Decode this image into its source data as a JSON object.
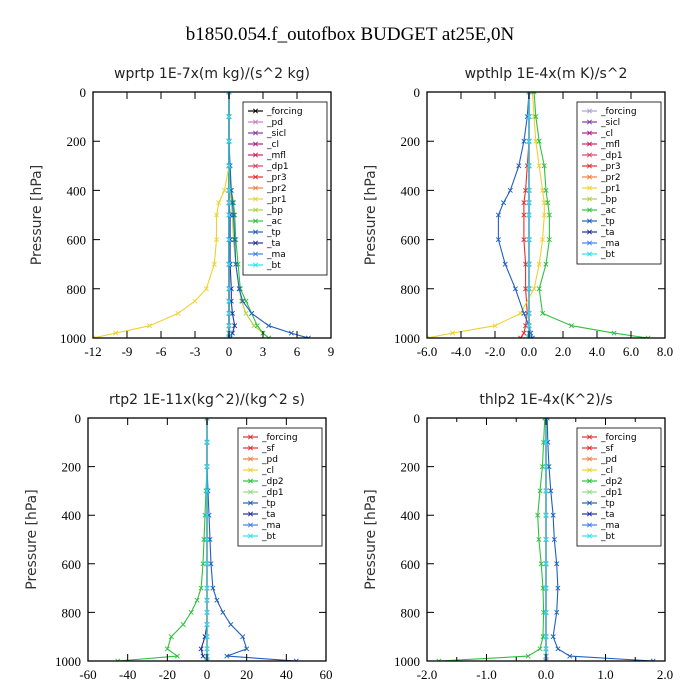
{
  "title": "b1850.054.f_outofbox  BUDGET at25E,0N",
  "chart_data": [
    {
      "id": "wprtp",
      "type": "line",
      "title": "wprtp  1E-7x(m kg)/(s^2 kg)",
      "ylabel": "Pressure [hPa]",
      "xlim": [
        -12,
        9
      ],
      "ylim": [
        1000,
        0
      ],
      "xticks": [
        -12,
        -9,
        -6,
        -3,
        0,
        3,
        6,
        9
      ],
      "xtick_labels": [
        "-12",
        "-9",
        "-6",
        "-3",
        "0",
        "3",
        "6",
        "9"
      ],
      "yticks": [
        0,
        200,
        400,
        600,
        800,
        1000
      ],
      "legend_position": "top-right",
      "y": [
        0,
        100,
        200,
        300,
        400,
        450,
        500,
        600,
        700,
        800,
        850,
        900,
        950,
        980,
        1000
      ],
      "series": [
        {
          "name": "_forcing",
          "color": "#000000",
          "values": [
            0,
            0,
            0,
            0,
            0,
            0,
            0,
            0,
            0,
            0,
            0,
            0,
            0,
            0,
            0
          ]
        },
        {
          "name": "_pd",
          "color": "#c080c0",
          "values": [
            0,
            0,
            0,
            0,
            0,
            0,
            0,
            0,
            0,
            0,
            0,
            0,
            0,
            0,
            0
          ]
        },
        {
          "name": "_sicl",
          "color": "#8040a0",
          "values": [
            0,
            0,
            0,
            0,
            0,
            0,
            0,
            0,
            0,
            0,
            0,
            0,
            0,
            0,
            0
          ]
        },
        {
          "name": "_cl",
          "color": "#b0208a",
          "values": [
            0,
            0,
            0,
            0,
            0,
            0,
            0,
            0,
            0,
            0,
            0,
            0,
            0,
            0,
            0
          ]
        },
        {
          "name": "_mfl",
          "color": "#d0205a",
          "values": [
            0,
            0,
            0,
            0,
            0,
            0,
            0,
            0,
            0,
            0,
            0,
            0,
            0,
            0,
            0
          ]
        },
        {
          "name": "_dp1",
          "color": "#e04060",
          "values": [
            0,
            0,
            0,
            0,
            0,
            0,
            0,
            0,
            0,
            0,
            0,
            0,
            0,
            0,
            0
          ]
        },
        {
          "name": "_pr3",
          "color": "#e03030",
          "values": [
            0,
            0,
            0,
            0,
            0,
            0,
            0,
            0,
            0,
            0,
            0,
            0,
            0,
            0,
            0
          ]
        },
        {
          "name": "_pr2",
          "color": "#f08040",
          "values": [
            0,
            0,
            0,
            0,
            0,
            0,
            0,
            0,
            0,
            0,
            0,
            0,
            0,
            0,
            0
          ]
        },
        {
          "name": "_pr1",
          "color": "#f0d030",
          "values": [
            0,
            0,
            0,
            0,
            -0.4,
            -0.9,
            -1.1,
            -1.1,
            -1.3,
            -2,
            -3,
            -4.5,
            -7,
            -10,
            -12
          ]
        },
        {
          "name": "_bp",
          "color": "#b0d040",
          "values": [
            0,
            0,
            0,
            0,
            0.1,
            0.2,
            0.3,
            0.4,
            0.6,
            0.9,
            1.1,
            1.5,
            2.2,
            3.0,
            3.5
          ]
        },
        {
          "name": "_ac",
          "color": "#30c040",
          "values": [
            0,
            0,
            0,
            0,
            0.2,
            0.4,
            0.5,
            0.6,
            0.8,
            1.0,
            1.5,
            2.0,
            2.5,
            3.0,
            3.5
          ]
        },
        {
          "name": "_tp",
          "color": "#2060c0",
          "values": [
            0,
            0,
            0,
            0.1,
            0.2,
            0.3,
            0.4,
            0.5,
            0.6,
            0.9,
            1.2,
            2.0,
            3.5,
            5.5,
            7
          ]
        },
        {
          "name": "_ta",
          "color": "#2030a0",
          "values": [
            0,
            0,
            0,
            0,
            0,
            0,
            0.1,
            0.1,
            0.1,
            0.2,
            0.2,
            0.3,
            0.5,
            0.3,
            0.1
          ]
        },
        {
          "name": "_ma",
          "color": "#4080f0",
          "values": [
            0,
            0,
            0,
            0,
            0,
            0,
            0,
            0,
            0,
            0,
            0,
            0,
            0,
            0,
            0
          ]
        },
        {
          "name": "_bt",
          "color": "#30e0f0",
          "values": [
            0,
            0,
            0,
            0,
            0,
            0,
            0,
            0,
            0,
            0,
            0,
            0,
            0,
            0,
            0
          ]
        }
      ]
    },
    {
      "id": "wpthlp",
      "type": "line",
      "title": "wpthlp  1E-4x(m K)/s^2",
      "ylabel": "Pressure [hPa]",
      "xlim": [
        -6,
        8
      ],
      "ylim": [
        1000,
        0
      ],
      "xticks": [
        -6,
        -4,
        -2,
        0,
        2,
        4,
        6,
        8
      ],
      "xtick_labels": [
        "-6.0",
        "-4.0",
        "-2.0",
        "0.0",
        "2.0",
        "4.0",
        "6.0",
        "8.0"
      ],
      "yticks": [
        0,
        200,
        400,
        600,
        800,
        1000
      ],
      "legend_position": "top-right",
      "y": [
        0,
        100,
        200,
        300,
        400,
        450,
        500,
        600,
        700,
        800,
        900,
        950,
        980,
        1000
      ],
      "series": [
        {
          "name": "_forcing",
          "color": "#b0a0d0",
          "values": [
            0,
            0,
            0,
            0,
            0,
            0,
            0,
            0,
            0,
            0,
            0,
            0,
            0,
            0
          ]
        },
        {
          "name": "_sicl",
          "color": "#8040a0",
          "values": [
            0,
            0,
            0,
            0,
            0,
            0,
            0,
            0,
            0,
            0,
            0,
            0,
            0,
            0
          ]
        },
        {
          "name": "_cl",
          "color": "#b0208a",
          "values": [
            0,
            0,
            0,
            0,
            0,
            0,
            0,
            0,
            0,
            0,
            0,
            0,
            0,
            0
          ]
        },
        {
          "name": "_mfl",
          "color": "#d0205a",
          "values": [
            0,
            0,
            0,
            0,
            0,
            0,
            0,
            0,
            0,
            0,
            0,
            0,
            0,
            0
          ]
        },
        {
          "name": "_dp1",
          "color": "#e04060",
          "values": [
            0,
            0,
            0,
            0,
            0,
            0,
            0,
            0,
            0,
            0,
            0,
            0,
            0,
            0
          ]
        },
        {
          "name": "_pr3",
          "color": "#e03030",
          "values": [
            0,
            0,
            0,
            -0.1,
            -0.2,
            -0.3,
            -0.3,
            -0.3,
            -0.2,
            -0.2,
            -0.1,
            -0.2,
            -0.3,
            -0.5
          ]
        },
        {
          "name": "_pr2",
          "color": "#f08040",
          "values": [
            0,
            0,
            0,
            0,
            0,
            0,
            0,
            0,
            0,
            0,
            0,
            0,
            0,
            0
          ]
        },
        {
          "name": "_pr1",
          "color": "#f0d030",
          "values": [
            0.2,
            0.3,
            0.4,
            0.6,
            0.8,
            0.9,
            0.9,
            0.8,
            0.6,
            0.3,
            -0.5,
            -2,
            -4.5,
            -6
          ]
        },
        {
          "name": "_bp",
          "color": "#b0d040",
          "values": [
            0,
            0,
            0,
            0,
            0,
            0,
            0,
            0,
            0,
            0,
            0,
            0,
            0,
            0
          ]
        },
        {
          "name": "_ac",
          "color": "#30c040",
          "values": [
            0.3,
            0.4,
            0.6,
            0.9,
            1.0,
            1.1,
            1.2,
            1.2,
            1.0,
            0.6,
            0.8,
            2.5,
            5,
            7
          ]
        },
        {
          "name": "_tp",
          "color": "#2060c0",
          "values": [
            0,
            -0.1,
            -0.3,
            -0.6,
            -1.1,
            -1.5,
            -1.8,
            -1.8,
            -1.4,
            -0.8,
            -0.3,
            0,
            0.1,
            0.2
          ]
        },
        {
          "name": "_ta",
          "color": "#2030a0",
          "values": [
            0,
            0,
            0,
            0,
            0,
            0,
            0,
            0,
            0,
            0,
            0,
            0,
            0,
            0
          ]
        },
        {
          "name": "_ma",
          "color": "#4080f0",
          "values": [
            0,
            0,
            0,
            0,
            0,
            0,
            0,
            0,
            0,
            0,
            0,
            0,
            0,
            0
          ]
        },
        {
          "name": "_bt",
          "color": "#30e0f0",
          "values": [
            0,
            0,
            0,
            0,
            0,
            0,
            0,
            0,
            0,
            0,
            0,
            0,
            0,
            0
          ]
        }
      ]
    },
    {
      "id": "rtp2",
      "type": "line",
      "title": "rtp2  1E-11x(kg^2)/(kg^2 s)",
      "ylabel": "Pressure [hPa]",
      "xlim": [
        -60,
        60
      ],
      "ylim": [
        1000,
        0
      ],
      "xticks": [
        -60,
        -40,
        -20,
        0,
        20,
        40,
        60
      ],
      "xtick_labels": [
        "-60",
        "-40",
        "-20",
        "0",
        "20",
        "40",
        "60"
      ],
      "yticks": [
        0,
        200,
        400,
        600,
        800,
        1000
      ],
      "legend_position": "top-right",
      "y": [
        0,
        100,
        200,
        300,
        400,
        500,
        600,
        700,
        750,
        800,
        850,
        900,
        950,
        980,
        1000
      ],
      "series": [
        {
          "name": "_forcing",
          "color": "#e03030",
          "values": [
            0,
            0,
            0,
            0,
            0,
            0,
            0,
            0,
            0,
            0,
            0,
            0,
            0,
            0,
            0
          ]
        },
        {
          "name": "_sf",
          "color": "#e03030",
          "values": [
            0,
            0,
            0,
            0,
            0,
            0,
            0,
            0,
            0,
            0,
            0,
            0,
            0,
            0,
            0
          ]
        },
        {
          "name": "_pd",
          "color": "#f08040",
          "values": [
            0,
            0,
            0,
            0,
            0,
            0,
            0,
            0,
            0,
            0,
            0,
            0,
            0,
            0,
            0
          ]
        },
        {
          "name": "_cl",
          "color": "#f0d030",
          "values": [
            0,
            0,
            0,
            0,
            0,
            0,
            0,
            0,
            0,
            0,
            0,
            0,
            0,
            0,
            0
          ]
        },
        {
          "name": "_dp2",
          "color": "#30c040",
          "values": [
            0,
            0,
            0,
            -0.5,
            -1,
            -1.5,
            -2,
            -3,
            -5,
            -8,
            -12,
            -18,
            -20,
            -15,
            -45
          ]
        },
        {
          "name": "_dp1",
          "color": "#90e080",
          "values": [
            0,
            0,
            0,
            0,
            0,
            0,
            0,
            0,
            0,
            0,
            0,
            0,
            0,
            0,
            0
          ]
        },
        {
          "name": "_tp",
          "color": "#2060c0",
          "values": [
            0,
            0,
            0,
            0.5,
            1,
            1.5,
            2,
            3,
            5,
            8,
            12,
            18,
            20,
            10,
            45
          ]
        },
        {
          "name": "_ta",
          "color": "#2030a0",
          "values": [
            0,
            0,
            0,
            0,
            0,
            0,
            0,
            0,
            0,
            0,
            0,
            -1,
            -3,
            -2,
            0
          ]
        },
        {
          "name": "_ma",
          "color": "#4080f0",
          "values": [
            0,
            0,
            0,
            0,
            0,
            0,
            0,
            0,
            0,
            0,
            0,
            0,
            0,
            0,
            0
          ]
        },
        {
          "name": "_bt",
          "color": "#30e0f0",
          "values": [
            0,
            0,
            0,
            0,
            0,
            0,
            0,
            0,
            0,
            0,
            0,
            0,
            0,
            0,
            0
          ]
        }
      ]
    },
    {
      "id": "thlp2",
      "type": "line",
      "title": "thlp2  1E-4x(K^2)/s",
      "ylabel": "Pressure [hPa]",
      "xlim": [
        -2,
        2
      ],
      "ylim": [
        1000,
        0
      ],
      "xticks": [
        -2,
        -1.5,
        -1,
        -0.5,
        0,
        0.5,
        1,
        1.5,
        2
      ],
      "xtick_labels": [
        "-2.0",
        "",
        "-1.0",
        "",
        "0.0",
        "",
        "1.0",
        "",
        "2.0"
      ],
      "yticks": [
        0,
        200,
        400,
        600,
        800,
        1000
      ],
      "legend_position": "top-right",
      "y": [
        0,
        100,
        200,
        300,
        400,
        500,
        600,
        700,
        800,
        900,
        950,
        980,
        1000
      ],
      "series": [
        {
          "name": "_forcing",
          "color": "#e03030",
          "values": [
            0,
            0,
            0,
            0,
            0,
            0,
            0,
            0,
            0,
            0,
            0,
            0,
            0
          ]
        },
        {
          "name": "_sf",
          "color": "#e03030",
          "values": [
            0,
            0,
            0,
            0,
            0,
            0,
            0,
            0,
            0,
            0,
            0,
            0,
            0
          ]
        },
        {
          "name": "_pd",
          "color": "#f08040",
          "values": [
            0,
            0,
            0,
            0,
            0,
            0,
            0,
            0,
            0,
            0,
            0,
            0,
            0
          ]
        },
        {
          "name": "_cl",
          "color": "#f0d030",
          "values": [
            0,
            0,
            0,
            0,
            0,
            0,
            0,
            0,
            0,
            0,
            0,
            0,
            0
          ]
        },
        {
          "name": "_dp2",
          "color": "#30c040",
          "values": [
            -0.02,
            -0.04,
            -0.06,
            -0.1,
            -0.14,
            -0.12,
            -0.08,
            -0.05,
            -0.04,
            -0.05,
            -0.1,
            -0.3,
            -1.8
          ]
        },
        {
          "name": "_dp1",
          "color": "#90e080",
          "values": [
            0,
            0,
            0,
            0,
            0,
            0,
            0,
            0,
            0,
            0,
            0,
            0,
            0
          ]
        },
        {
          "name": "_tp",
          "color": "#2060c0",
          "values": [
            0.02,
            0.03,
            0.05,
            0.08,
            0.12,
            0.14,
            0.18,
            0.2,
            0.18,
            0.12,
            0.2,
            0.4,
            1.8
          ]
        },
        {
          "name": "_ta",
          "color": "#2030a0",
          "values": [
            0,
            0,
            0,
            0,
            0,
            0,
            0,
            0,
            0,
            0,
            0,
            0,
            0
          ]
        },
        {
          "name": "_ma",
          "color": "#4080f0",
          "values": [
            0,
            0,
            0,
            0,
            0,
            0,
            0,
            0,
            0,
            0,
            0,
            0,
            0
          ]
        },
        {
          "name": "_bt",
          "color": "#30e0f0",
          "values": [
            0,
            0,
            0,
            0,
            0,
            0,
            0,
            0,
            0,
            0,
            0,
            0,
            0
          ]
        }
      ]
    }
  ]
}
